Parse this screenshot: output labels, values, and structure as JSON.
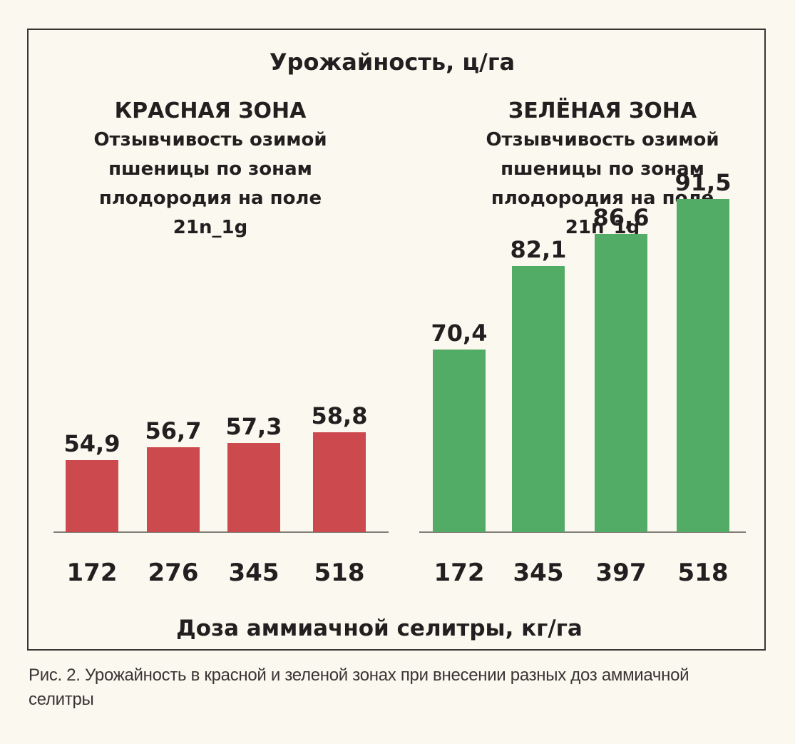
{
  "chart_data": {
    "type": "bar",
    "title": "Урожайность, ц/га",
    "xlabel": "Доза аммиачной селитры, кг/га",
    "ylim": [
      50,
      95
    ],
    "panels": [
      {
        "name": "КРАСНАЯ ЗОНА",
        "subtitle_lines": [
          "Отзывчивость озимой",
          "пшеницы по зонам",
          "плодородия на поле",
          "21n_1g"
        ],
        "color": "#cc4a4e",
        "categories": [
          "172",
          "276",
          "345",
          "518"
        ],
        "values": [
          54.9,
          56.7,
          57.3,
          58.8
        ],
        "value_labels": [
          "54,9",
          "56,7",
          "57,3",
          "58,8"
        ]
      },
      {
        "name": "ЗЕЛЁНАЯ ЗОНА",
        "subtitle_lines": [
          "Отзывчивость озимой",
          "пшеницы по зонам",
          "плодородия на поле",
          "21n_1g"
        ],
        "color": "#52ac66",
        "categories": [
          "172",
          "345",
          "397",
          "518"
        ],
        "values": [
          70.4,
          82.1,
          86.6,
          91.5
        ],
        "value_labels": [
          "70,4",
          "82,1",
          "86,6",
          "91,5"
        ]
      }
    ]
  },
  "caption": "Рис. 2.  Урожайность в красной и зеленой зонах при внесении разных доз аммиачной селитры"
}
